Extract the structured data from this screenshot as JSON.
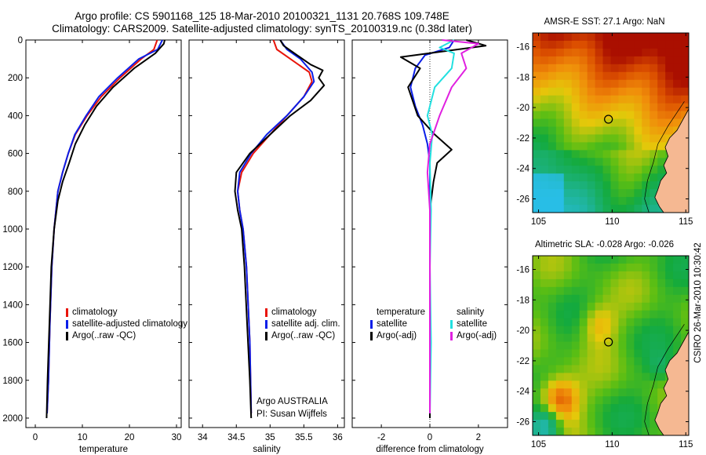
{
  "header": {
    "line1": "Argo profile: CS 5901168_125 18-Mar-2010 20100321_1131 20.768S 109.748E",
    "line2": "Climatology: CARS2009. Satellite-adjusted climatology: synTS_20100319.nc (0.38d later)"
  },
  "stamp": "CSIRO 26-Mar-2010 10:30:42",
  "colors": {
    "climatology": "#e8140a",
    "satellite": "#0a1ee8",
    "argo": "#000000",
    "cyan": "#22e0e0",
    "magenta": "#e020e0"
  },
  "chart_data": [
    {
      "type": "line",
      "xlabel": "temperature",
      "xlim": [
        -2,
        31
      ],
      "ylim": [
        0,
        2050
      ],
      "xticks": [
        0,
        10,
        20,
        30
      ],
      "yticks": [
        0,
        200,
        400,
        600,
        800,
        1000,
        1200,
        1400,
        1600,
        1800,
        2000
      ],
      "legend": [
        "climatology",
        "satellite-adjusted climatology",
        "Argo(..raw -QC)"
      ],
      "series": [
        {
          "name": "climatology",
          "color": "#e8140a",
          "x": [
            25.9,
            25.2,
            22.5,
            18.0,
            14.0,
            11.0,
            8.5,
            7.0,
            5.8,
            4.8,
            4.0,
            3.5,
            3.1,
            2.8,
            2.5
          ],
          "y": [
            0,
            50,
            100,
            200,
            300,
            400,
            500,
            600,
            700,
            800,
            1000,
            1200,
            1500,
            1800,
            1975
          ]
        },
        {
          "name": "satellite-adjusted climatology",
          "color": "#0a1ee8",
          "x": [
            27.0,
            26.0,
            22.0,
            17.5,
            13.5,
            10.8,
            8.4,
            7.0,
            5.8,
            4.8,
            4.0,
            3.5,
            3.1,
            2.8,
            2.5
          ],
          "y": [
            0,
            50,
            100,
            200,
            300,
            400,
            500,
            600,
            700,
            800,
            1000,
            1200,
            1500,
            1800,
            1975
          ]
        },
        {
          "name": "Argo(..raw -QC)",
          "color": "#000000",
          "x": [
            27.5,
            27.3,
            25.5,
            21.0,
            16.5,
            13.0,
            10.5,
            8.5,
            7.2,
            5.8,
            4.8,
            4.0,
            3.4,
            3.0,
            2.6,
            2.4
          ],
          "y": [
            0,
            20,
            70,
            150,
            250,
            350,
            450,
            550,
            650,
            750,
            850,
            1000,
            1200,
            1500,
            1800,
            2000
          ]
        }
      ]
    },
    {
      "type": "line",
      "xlabel": "salinity",
      "xlim": [
        33.8,
        36.1
      ],
      "ylim": [
        0,
        2050
      ],
      "xticks": [
        34,
        34.5,
        35,
        35.5,
        36
      ],
      "yticks": [
        0,
        200,
        400,
        600,
        800,
        1000,
        1200,
        1400,
        1600,
        1800,
        2000
      ],
      "legend": [
        "climatology",
        "satellite adj. clim.",
        "Argo(..raw -QC)"
      ],
      "annotation": [
        "Argo AUSTRALIA",
        "PI: Susan Wijffels"
      ],
      "series": [
        {
          "name": "climatology",
          "color": "#e8140a",
          "x": [
            35.05,
            35.1,
            35.3,
            35.58,
            35.62,
            35.5,
            35.25,
            35.0,
            34.75,
            34.58,
            34.52,
            34.55,
            34.6,
            34.65,
            34.7,
            34.72
          ],
          "y": [
            0,
            50,
            100,
            170,
            220,
            300,
            400,
            500,
            600,
            700,
            800,
            900,
            1000,
            1200,
            1600,
            1975
          ]
        },
        {
          "name": "satellite adj. clim.",
          "color": "#0a1ee8",
          "x": [
            35.15,
            35.25,
            35.45,
            35.62,
            35.65,
            35.5,
            35.25,
            34.95,
            34.72,
            34.55,
            34.52,
            34.55,
            34.6,
            34.65,
            34.7,
            34.72
          ],
          "y": [
            0,
            50,
            100,
            170,
            220,
            300,
            400,
            500,
            600,
            700,
            800,
            900,
            1000,
            1200,
            1600,
            1975
          ]
        },
        {
          "name": "Argo(..raw -QC)",
          "color": "#000000",
          "x": [
            35.15,
            35.2,
            35.4,
            35.6,
            35.78,
            35.72,
            35.8,
            35.6,
            35.3,
            35.0,
            34.7,
            34.5,
            34.48,
            34.52,
            34.58,
            34.62,
            34.66,
            34.7,
            34.72
          ],
          "y": [
            0,
            30,
            80,
            130,
            160,
            200,
            240,
            320,
            400,
            500,
            600,
            700,
            800,
            900,
            1000,
            1200,
            1500,
            1800,
            2000
          ]
        }
      ]
    },
    {
      "type": "line",
      "xlabel": "difference from climatology",
      "xlim": [
        -3.2,
        3.2
      ],
      "ylim": [
        0,
        2050
      ],
      "xticks": [
        -2,
        0,
        2
      ],
      "yticks": [
        0,
        200,
        400,
        600,
        800,
        1000,
        1200,
        1400,
        1600,
        1800,
        2000
      ],
      "legend": {
        "temperature": [
          "temperature",
          "satellite",
          "Argo(-adj)"
        ],
        "salinity": [
          "salinity",
          "satellite",
          "Argo(-adj)"
        ]
      },
      "series": [
        {
          "name": "temperature satellite",
          "color": "#0a1ee8",
          "x": [
            1.0,
            0.8,
            -0.2,
            -0.6,
            -0.8,
            -0.6,
            -0.3,
            -0.1,
            0.0,
            0.0,
            0.0,
            0.0,
            0.0,
            0.0
          ],
          "y": [
            0,
            40,
            80,
            150,
            250,
            350,
            450,
            550,
            650,
            800,
            1000,
            1300,
            1600,
            1975
          ]
        },
        {
          "name": "temperature Argo(-adj)",
          "color": "#000000",
          "x": [
            1.5,
            2.3,
            -1.2,
            -0.4,
            -0.9,
            -0.5,
            0.2,
            0.9,
            0.3,
            0.15,
            0.0,
            0.0,
            0.0,
            0.0
          ],
          "y": [
            0,
            30,
            90,
            150,
            250,
            400,
            500,
            580,
            650,
            750,
            900,
            1200,
            1600,
            2000
          ]
        },
        {
          "name": "salinity satellite",
          "color": "#22e0e0",
          "x": [
            1.0,
            0.4,
            1.0,
            0.9,
            0.2,
            -0.1,
            0.1,
            0.0,
            0.05,
            0.0,
            0.05,
            0.0
          ],
          "y": [
            0,
            40,
            70,
            150,
            250,
            400,
            500,
            650,
            900,
            1200,
            1600,
            1975
          ]
        },
        {
          "name": "salinity Argo(-adj)",
          "color": "#e020e0",
          "x": [
            0.5,
            2.0,
            1.3,
            1.5,
            0.9,
            0.4,
            0.0,
            -0.1,
            0.0,
            0.0,
            0.0,
            0.0
          ],
          "y": [
            0,
            20,
            70,
            150,
            250,
            400,
            550,
            700,
            900,
            1200,
            1600,
            1975
          ]
        }
      ]
    },
    {
      "type": "heatmap",
      "title": "AMSR-E SST: 27.1 Argo: NaN",
      "xlim": [
        104.6,
        115.2
      ],
      "ylim": [
        -26.9,
        -15.1
      ],
      "xticks": [
        105,
        110,
        115
      ],
      "yticks": [
        -16,
        -18,
        -20,
        -22,
        -24,
        -26
      ],
      "marker": {
        "lon": 109.748,
        "lat": -20.768
      }
    },
    {
      "type": "heatmap",
      "title": "Altimetric SLA: -0.028 Argo: -0.026",
      "xlim": [
        104.6,
        115.2
      ],
      "ylim": [
        -26.9,
        -15.1
      ],
      "xticks": [
        105,
        110,
        115
      ],
      "yticks": [
        -16,
        -18,
        -20,
        -22,
        -24,
        -26
      ],
      "marker": {
        "lon": 109.748,
        "lat": -20.768
      }
    }
  ]
}
